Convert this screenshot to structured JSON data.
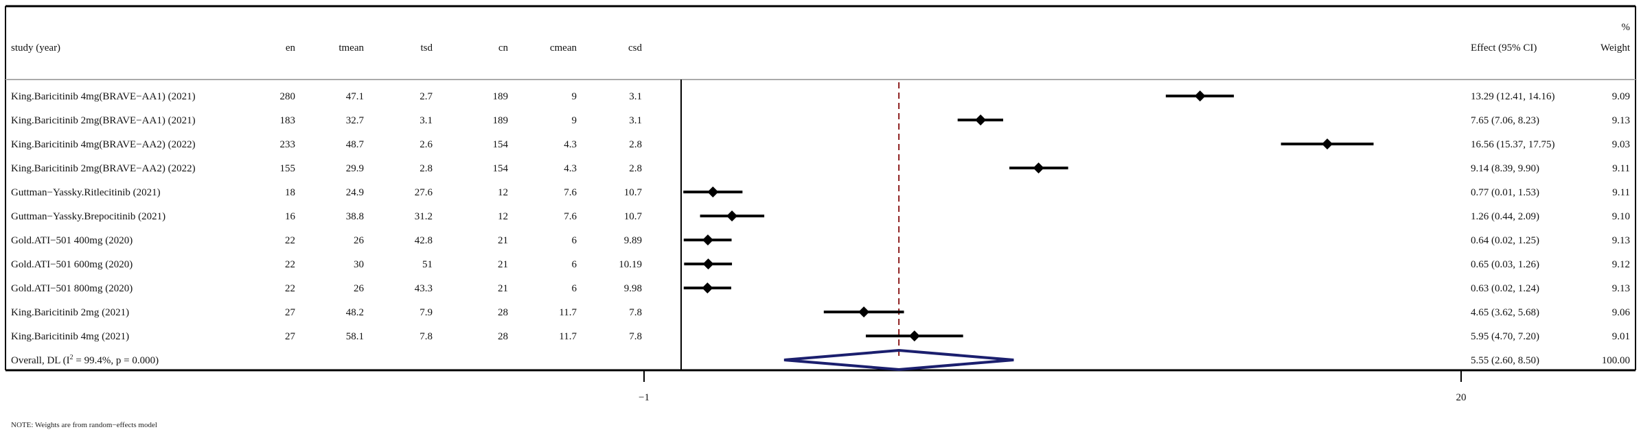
{
  "chart_data": {
    "type": "forest",
    "columns": [
      "study (year)",
      "en",
      "tmean",
      "tsd",
      "cn",
      "cmean",
      "csd"
    ],
    "effect_header": "Effect (95% CI)",
    "weight_header_top": "%",
    "weight_header": "Weight",
    "rows": [
      {
        "study": "King.Baricitinib 4mg(BRAVE−AA1) (2021)",
        "en": "280",
        "tmean": "47.1",
        "tsd": "2.7",
        "cn": "189",
        "cmean": "9",
        "csd": "3.1",
        "effect": 13.29,
        "lo": 12.41,
        "hi": 14.16,
        "effect_text": "13.29 (12.41, 14.16)",
        "weight": "9.09"
      },
      {
        "study": "King.Baricitinib 2mg(BRAVE−AA1) (2021)",
        "en": "183",
        "tmean": "32.7",
        "tsd": "3.1",
        "cn": "189",
        "cmean": "9",
        "csd": "3.1",
        "effect": 7.65,
        "lo": 7.06,
        "hi": 8.23,
        "effect_text": "7.65 (7.06, 8.23)",
        "weight": "9.13"
      },
      {
        "study": "King.Baricitinib 4mg(BRAVE−AA2) (2022)",
        "en": "233",
        "tmean": "48.7",
        "tsd": "2.6",
        "cn": "154",
        "cmean": "4.3",
        "csd": "2.8",
        "effect": 16.56,
        "lo": 15.37,
        "hi": 17.75,
        "effect_text": "16.56 (15.37, 17.75)",
        "weight": "9.03"
      },
      {
        "study": "King.Baricitinib 2mg(BRAVE−AA2) (2022)",
        "en": "155",
        "tmean": "29.9",
        "tsd": "2.8",
        "cn": "154",
        "cmean": "4.3",
        "csd": "2.8",
        "effect": 9.14,
        "lo": 8.39,
        "hi": 9.9,
        "effect_text": "9.14 (8.39, 9.90)",
        "weight": "9.11"
      },
      {
        "study": "Guttman−Yassky.Ritlecitinib (2021)",
        "en": "18",
        "tmean": "24.9",
        "tsd": "27.6",
        "cn": "12",
        "cmean": "7.6",
        "csd": "10.7",
        "effect": 0.77,
        "lo": 0.01,
        "hi": 1.53,
        "effect_text": "0.77 (0.01, 1.53)",
        "weight": "9.11"
      },
      {
        "study": "Guttman−Yassky.Brepocitinib (2021)",
        "en": "16",
        "tmean": "38.8",
        "tsd": "31.2",
        "cn": "12",
        "cmean": "7.6",
        "csd": "10.7",
        "effect": 1.26,
        "lo": 0.44,
        "hi": 2.09,
        "effect_text": "1.26 (0.44, 2.09)",
        "weight": "9.10"
      },
      {
        "study": "Gold.ATI−501 400mg (2020)",
        "en": "22",
        "tmean": "26",
        "tsd": "42.8",
        "cn": "21",
        "cmean": "6",
        "csd": "9.89",
        "effect": 0.64,
        "lo": 0.02,
        "hi": 1.25,
        "effect_text": "0.64 (0.02, 1.25)",
        "weight": "9.13"
      },
      {
        "study": "Gold.ATI−501 600mg (2020)",
        "en": "22",
        "tmean": "30",
        "tsd": "51",
        "cn": "21",
        "cmean": "6",
        "csd": "10.19",
        "effect": 0.65,
        "lo": 0.03,
        "hi": 1.26,
        "effect_text": "0.65 (0.03, 1.26)",
        "weight": "9.12"
      },
      {
        "study": "Gold.ATI−501 800mg (2020)",
        "en": "22",
        "tmean": "26",
        "tsd": "43.3",
        "cn": "21",
        "cmean": "6",
        "csd": "9.98",
        "effect": 0.63,
        "lo": 0.02,
        "hi": 1.24,
        "effect_text": "0.63 (0.02, 1.24)",
        "weight": "9.13"
      },
      {
        "study": "King.Baricitinib 2mg (2021)",
        "en": "27",
        "tmean": "48.2",
        "tsd": "7.9",
        "cn": "28",
        "cmean": "11.7",
        "csd": "7.8",
        "effect": 4.65,
        "lo": 3.62,
        "hi": 5.68,
        "effect_text": "4.65 (3.62, 5.68)",
        "weight": "9.06"
      },
      {
        "study": "King.Baricitinib 4mg (2021)",
        "en": "27",
        "tmean": "58.1",
        "tsd": "7.8",
        "cn": "28",
        "cmean": "11.7",
        "csd": "7.8",
        "effect": 5.95,
        "lo": 4.7,
        "hi": 7.2,
        "effect_text": "5.95 (4.70, 7.20)",
        "weight": "9.01"
      }
    ],
    "overall": {
      "label_prefix": "Overall, DL (I",
      "label_sup": "2",
      "label_suffix": " = 99.4%, p = 0.000)",
      "effect": 5.55,
      "lo": 2.6,
      "hi": 8.5,
      "effect_text": "5.55 (2.60, 8.50)",
      "weight": "100.00"
    },
    "x_ticks": [
      {
        "value": -1,
        "label": "−1"
      },
      {
        "value": 20,
        "label": "20"
      }
    ],
    "null_line": 0,
    "xlim": [
      -1,
      20
    ],
    "note": "NOTE: Weights are from random−effects model",
    "colors": {
      "marker": "#000000",
      "ci": "#000000",
      "overall_line": "#8b1a1a",
      "diamond": "#1b1f6e",
      "axis": "#000000",
      "divider": "#aaaaaa"
    }
  }
}
